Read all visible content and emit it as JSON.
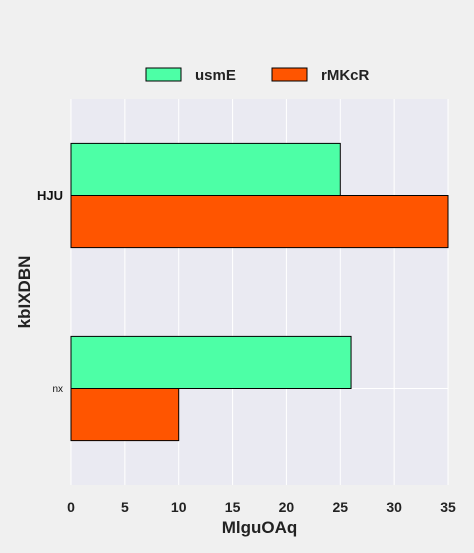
{
  "chart_data": {
    "type": "bar",
    "orientation": "horizontal",
    "categories": [
      "HJU",
      "nx"
    ],
    "series": [
      {
        "name": "usmE",
        "values": [
          25,
          26
        ],
        "color": "#4dffa6"
      },
      {
        "name": "rMKcR",
        "values": [
          35,
          10
        ],
        "color": "#ff5500"
      }
    ],
    "xlabel": "MlguOAq",
    "ylabel": "kbIXDBN",
    "xlim": [
      0,
      35
    ],
    "xticks": [
      "0",
      "5",
      "10",
      "15",
      "20",
      "25",
      "30",
      "35"
    ],
    "grid": true,
    "legend_position": "top",
    "colors": {
      "background": "#f0f0f0",
      "plot_area": "#eaeaf2",
      "grid": "#ffffff"
    }
  }
}
